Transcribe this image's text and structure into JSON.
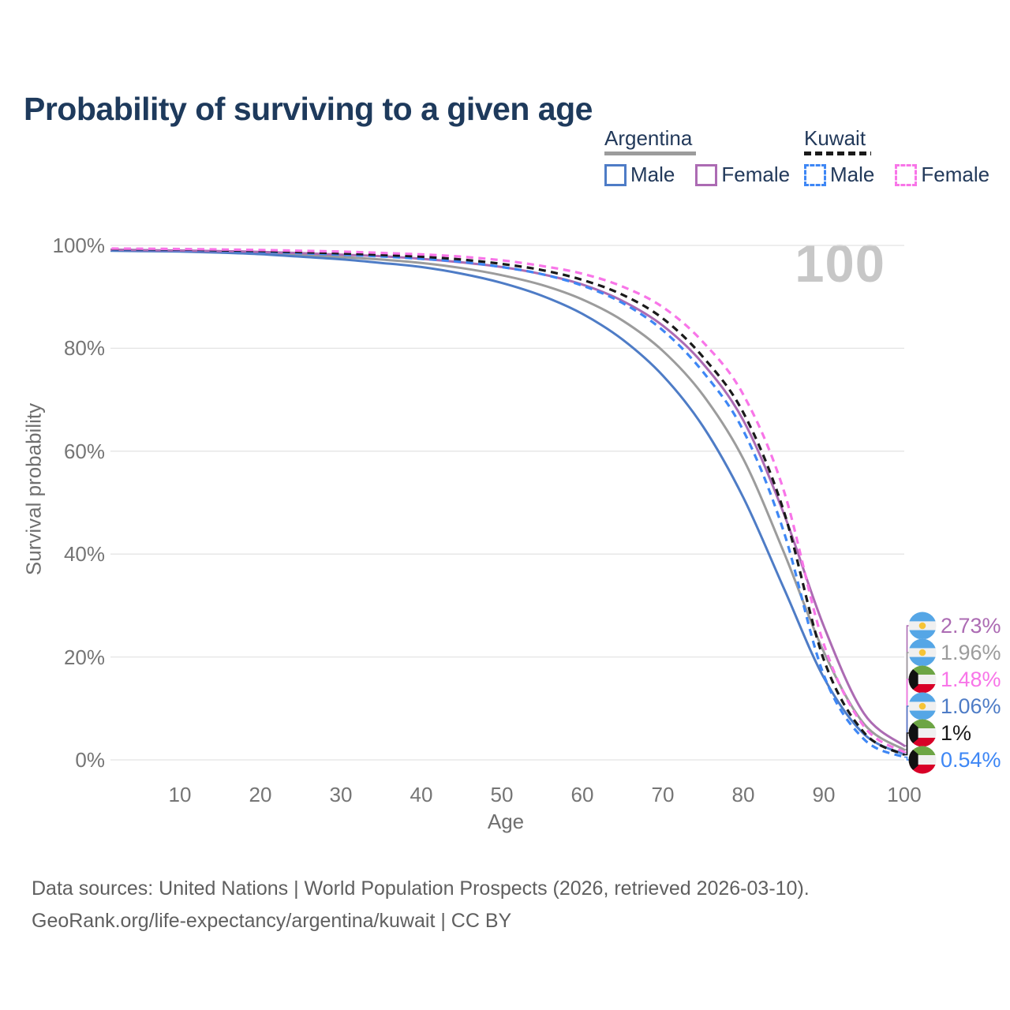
{
  "title": "Probability of surviving to a given age",
  "legend": {
    "position": "top-right",
    "groups": [
      {
        "country": "Argentina",
        "line_style": "solid",
        "color": "#9c9c9c",
        "items": [
          {
            "label": "Male",
            "color": "#4e7cc6",
            "line_style": "solid"
          },
          {
            "label": "Female",
            "color": "#ac6bb3",
            "line_style": "solid"
          }
        ]
      },
      {
        "country": "Kuwait",
        "line_style": "dashed",
        "color": "#1a1a1a",
        "items": [
          {
            "label": "Male",
            "color": "#3e87f5",
            "line_style": "dashed"
          },
          {
            "label": "Female",
            "color": "#f875e8",
            "line_style": "dashed"
          }
        ]
      }
    ]
  },
  "footer": {
    "line1": "Data sources: United Nations | World Population Prospects (2026, retrieved 2026-03-10).",
    "line2": "GeoRank.org/life-expectancy/argentina/kuwait | CC BY"
  },
  "chart_data": {
    "type": "line",
    "title": "Probability of surviving to a given age",
    "xlabel": "Age",
    "ylabel": "Survival probability",
    "xlim": [
      0,
      100
    ],
    "ylim": [
      0,
      100
    ],
    "xticks": [
      10,
      20,
      30,
      40,
      50,
      60,
      70,
      80,
      90,
      100
    ],
    "yticks": [
      0,
      20,
      40,
      60,
      80,
      100
    ],
    "ytick_suffix": "%",
    "grid": "horizontal-only",
    "legend_position": "top-right",
    "watermark": "100",
    "ages": [
      0,
      5,
      10,
      15,
      20,
      25,
      30,
      35,
      40,
      45,
      50,
      55,
      60,
      65,
      70,
      75,
      80,
      85,
      90,
      95,
      100
    ],
    "series": [
      {
        "name": "Argentina",
        "country": "Argentina",
        "sex": "Both",
        "style": "solid",
        "color": "#9c9c9c",
        "end_label": "1.96%",
        "values": [
          99.1,
          99.0,
          98.9,
          98.75,
          98.5,
          98.15,
          97.75,
          97.25,
          96.6,
          95.6,
          94.2,
          92.3,
          89.5,
          85.4,
          79.5,
          70.9,
          58.5,
          40.5,
          21.0,
          7.0,
          1.96
        ]
      },
      {
        "name": "Argentina Male",
        "country": "Argentina",
        "sex": "Male",
        "style": "solid",
        "color": "#4e7cc6",
        "end_label": "1.06%",
        "values": [
          99.0,
          98.9,
          98.8,
          98.6,
          98.3,
          97.8,
          97.3,
          96.6,
          95.8,
          94.5,
          92.7,
          90.2,
          86.7,
          81.7,
          74.7,
          64.8,
          51.0,
          33.5,
          16.0,
          5.0,
          1.06
        ]
      },
      {
        "name": "Argentina Female",
        "country": "Argentina",
        "sex": "Female",
        "style": "solid",
        "color": "#ac6bb3",
        "end_label": "2.73%",
        "values": [
          99.2,
          99.1,
          99.0,
          98.9,
          98.75,
          98.5,
          98.2,
          97.9,
          97.4,
          96.7,
          95.8,
          94.4,
          92.4,
          89.2,
          84.4,
          77.0,
          66.0,
          48.0,
          26.0,
          9.0,
          2.73
        ]
      },
      {
        "name": "Kuwait Male",
        "country": "Kuwait",
        "sex": "Male",
        "style": "dashed",
        "color": "#3e87f5",
        "end_label": "0.54%",
        "values": [
          99.2,
          99.15,
          99.1,
          98.95,
          98.75,
          98.5,
          98.2,
          97.85,
          97.4,
          96.8,
          95.8,
          94.4,
          92.2,
          88.8,
          83.5,
          75.4,
          64.0,
          44.5,
          16.5,
          4.0,
          0.54
        ]
      },
      {
        "name": "Kuwait",
        "country": "Kuwait",
        "sex": "Both",
        "style": "dashed",
        "color": "#1a1a1a",
        "end_label": "1%",
        "values": [
          99.3,
          99.25,
          99.2,
          99.05,
          98.9,
          98.7,
          98.45,
          98.15,
          97.8,
          97.25,
          96.4,
          95.2,
          93.3,
          90.4,
          85.8,
          78.3,
          67.5,
          48.5,
          19.5,
          5.3,
          1.0
        ]
      },
      {
        "name": "Kuwait Female",
        "country": "Kuwait",
        "sex": "Female",
        "style": "dashed",
        "color": "#f875e8",
        "end_label": "1.48%",
        "values": [
          99.4,
          99.35,
          99.3,
          99.2,
          99.1,
          98.95,
          98.8,
          98.55,
          98.25,
          97.8,
          97.1,
          96.0,
          94.5,
          92.0,
          88.0,
          81.2,
          71.0,
          52.5,
          22.5,
          6.5,
          1.48
        ]
      }
    ],
    "annotations": [
      {
        "series": "Argentina Female",
        "flag": "argentina-flag",
        "label": "2.73%",
        "value": 2.73
      },
      {
        "series": "Argentina",
        "flag": "argentina-flag",
        "label": "1.96%",
        "value": 1.96
      },
      {
        "series": "Kuwait Female",
        "flag": "kuwait-flag",
        "label": "1.48%",
        "value": 1.48
      },
      {
        "series": "Argentina Male",
        "flag": "argentina-flag",
        "label": "1.06%",
        "value": 1.06
      },
      {
        "series": "Kuwait",
        "flag": "kuwait-flag",
        "label": "1%",
        "value": 1.0
      },
      {
        "series": "Kuwait Male",
        "flag": "kuwait-flag",
        "label": "0.54%",
        "value": 0.54
      }
    ],
    "flag_colors": {
      "argentina_blue": "#55A6E6",
      "argentina_sun": "#F6C437",
      "kuwait_green": "#6DA544",
      "kuwait_red": "#D80027",
      "kuwait_black": "#111111",
      "flag_white": "#F0F0F0"
    }
  }
}
